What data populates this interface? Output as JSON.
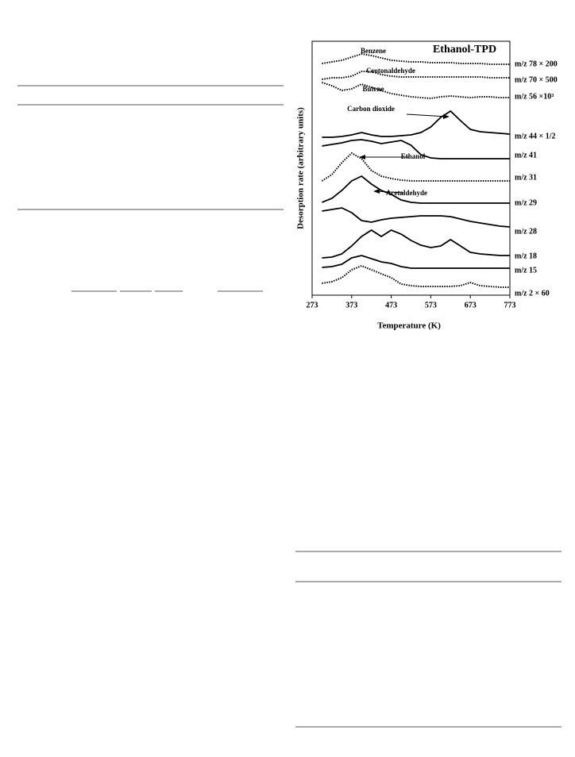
{
  "chart_data": {
    "type": "line",
    "title": "Ethanol-TPD",
    "x_label": "Temperature (K)",
    "y_label": "Desorption rate (arbitrary units)",
    "xlim": [
      273,
      773
    ],
    "xticks": [
      273,
      373,
      473,
      573,
      673,
      773
    ],
    "ylim": [
      0,
      320
    ],
    "x": [
      298,
      323,
      348,
      373,
      398,
      423,
      448,
      473,
      498,
      523,
      548,
      573,
      598,
      623,
      648,
      673,
      698,
      723,
      748,
      773
    ],
    "series": [
      {
        "name": "m/z 78 × 200",
        "color": "#000000",
        "dotted": true,
        "values": [
          292,
          294,
          296,
          300,
          304,
          302,
          299,
          296,
          295,
          294,
          294,
          293,
          293,
          293,
          292,
          292,
          292,
          291,
          291,
          291
        ]
      },
      {
        "name": "m/z 70 × 500",
        "color": "#000000",
        "dotted": true,
        "values": [
          272,
          274,
          274,
          276,
          282,
          282,
          278,
          276,
          275,
          275,
          275,
          275,
          275,
          275,
          275,
          275,
          275,
          274,
          274,
          274
        ]
      },
      {
        "name": "m/z 56 ×10³",
        "color": "#000000",
        "dotted": true,
        "values": [
          268,
          264,
          258,
          260,
          266,
          262,
          258,
          254,
          252,
          250,
          249,
          248,
          250,
          251,
          250,
          249,
          250,
          250,
          249,
          249
        ]
      },
      {
        "name": "m/z 44 × 1/2",
        "color": "#000000",
        "dotted": false,
        "values": [
          199,
          199,
          200,
          202,
          205,
          202,
          200,
          200,
          201,
          202,
          205,
          212,
          224,
          232,
          220,
          209,
          206,
          205,
          204,
          203
        ]
      },
      {
        "name": "m/z 41",
        "color": "#000000",
        "dotted": false,
        "values": [
          188,
          190,
          192,
          195,
          196,
          194,
          191,
          193,
          195,
          189,
          177,
          173,
          172,
          172,
          172,
          172,
          172,
          172,
          172,
          172
        ]
      },
      {
        "name": "m/z 31",
        "color": "#000000",
        "dotted": true,
        "values": [
          144,
          152,
          167,
          179,
          172,
          157,
          150,
          147,
          145,
          144,
          144,
          144,
          144,
          144,
          144,
          144,
          144,
          144,
          144,
          144
        ]
      },
      {
        "name": "m/z 29",
        "color": "#000000",
        "dotted": false,
        "values": [
          117,
          122,
          132,
          144,
          150,
          140,
          132,
          127,
          120,
          117,
          116,
          116,
          116,
          116,
          116,
          116,
          116,
          116,
          116,
          116
        ]
      },
      {
        "name": "m/z 28",
        "color": "#000000",
        "dotted": false,
        "values": [
          106,
          108,
          110,
          104,
          94,
          92,
          95,
          97,
          98,
          99,
          100,
          100,
          100,
          99,
          96,
          93,
          91,
          89,
          87,
          86
        ]
      },
      {
        "name": "m/z 18",
        "color": "#000000",
        "dotted": false,
        "values": [
          47,
          48,
          52,
          62,
          74,
          82,
          74,
          82,
          77,
          69,
          63,
          60,
          62,
          70,
          62,
          54,
          52,
          51,
          50,
          50
        ]
      },
      {
        "name": "m/z 15",
        "color": "#000000",
        "dotted": false,
        "values": [
          35,
          36,
          39,
          47,
          50,
          46,
          42,
          40,
          36,
          34,
          34,
          34,
          34,
          34,
          34,
          34,
          34,
          34,
          34,
          34
        ]
      },
      {
        "name": "m/z 2 × 60",
        "color": "#000000",
        "dotted": true,
        "values": [
          15,
          17,
          22,
          32,
          37,
          32,
          27,
          22,
          14,
          12,
          11,
          11,
          11,
          11,
          12,
          16,
          12,
          11,
          10,
          10
        ]
      }
    ],
    "annotations": [
      "Benzene",
      "Crotonaldehyde",
      "Butene",
      "Carbon dioxide",
      "Ethanol",
      "Acetaldehyde"
    ]
  }
}
